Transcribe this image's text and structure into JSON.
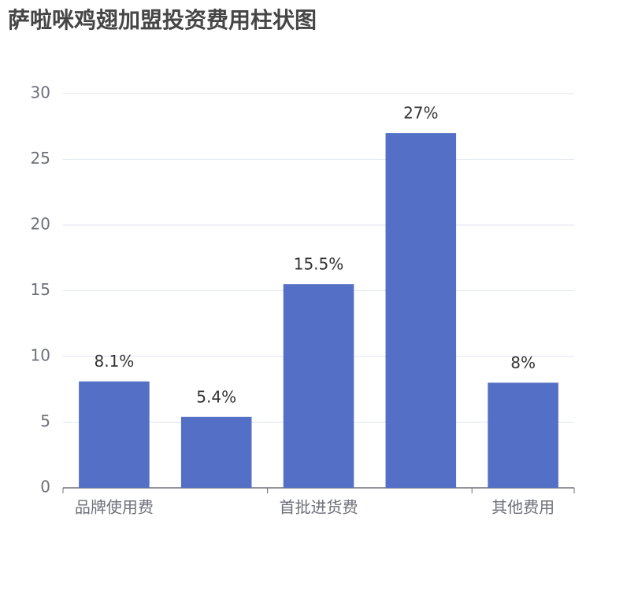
{
  "chart_data": {
    "type": "bar",
    "title": "萨啦咪鸡翅加盟投资费用柱状图",
    "categories": [
      "品牌使用费",
      null,
      "首批进货费",
      null,
      "其他费用"
    ],
    "values": [
      8.1,
      5.4,
      15.5,
      27,
      8
    ],
    "value_labels": [
      "8.1%",
      "5.4%",
      "15.5%",
      "27%",
      "8%"
    ],
    "color": "#5470c6",
    "ylim": [
      0,
      30
    ],
    "yticks": [
      0,
      5,
      10,
      15,
      20,
      25,
      30
    ],
    "grid": true
  }
}
